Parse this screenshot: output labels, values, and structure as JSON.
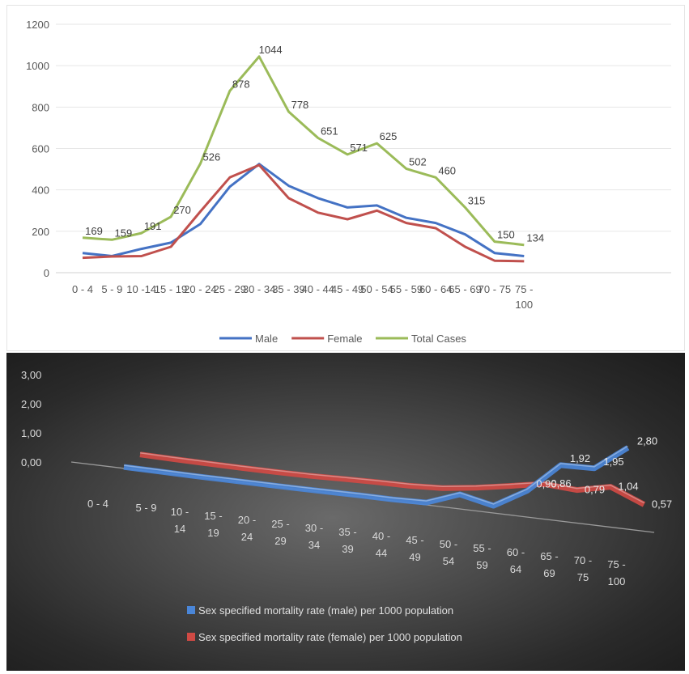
{
  "chart_data": [
    {
      "type": "line",
      "title": "",
      "xlabel": "",
      "ylabel": "",
      "ylim": [
        0,
        1200
      ],
      "yticks": [
        "0",
        "200",
        "400",
        "600",
        "800",
        "1000",
        "1200"
      ],
      "grid": true,
      "legend_position": "bottom",
      "x_tick_lines": [
        [
          "0 - 4"
        ],
        [
          "5 - 9"
        ],
        [
          "10 -14"
        ],
        [
          "15 - 19"
        ],
        [
          "20 - 24"
        ],
        [
          "25 - 29"
        ],
        [
          "30 - 34"
        ],
        [
          "35 - 39"
        ],
        [
          "40 - 44"
        ],
        [
          "45 - 49"
        ],
        [
          "50 - 54"
        ],
        [
          "55 - 59"
        ],
        [
          "60 - 64"
        ],
        [
          "65 - 69"
        ],
        [
          "70 - 75"
        ],
        [
          "75 -",
          "100"
        ]
      ],
      "categories": [
        "0 - 4",
        "5 - 9",
        "10 -14",
        "15 - 19",
        "20 - 24",
        "25 - 29",
        "30 - 34",
        "35 - 39",
        "40 - 44",
        "45 - 49",
        "50 - 54",
        "55 - 59",
        "60 - 64",
        "65 - 69",
        "70 - 75",
        "75 - 100"
      ],
      "series": [
        {
          "name": "Male",
          "color": "#4472c4",
          "values": [
            95,
            80,
            115,
            145,
            235,
            415,
            525,
            420,
            360,
            315,
            325,
            265,
            240,
            185,
            95,
            80
          ]
        },
        {
          "name": "Female",
          "color": "#c0504d",
          "values": [
            72,
            78,
            80,
            125,
            295,
            460,
            520,
            360,
            290,
            258,
            300,
            240,
            215,
            125,
            58,
            55
          ]
        },
        {
          "name": "Total Cases",
          "color": "#9bbb59",
          "values": [
            169,
            159,
            191,
            270,
            526,
            878,
            1044,
            778,
            651,
            571,
            625,
            502,
            460,
            315,
            150,
            134
          ]
        }
      ],
      "data_labels": [
        "169",
        "159",
        "191",
        "270",
        "526",
        "878",
        "1044",
        "778",
        "651",
        "571",
        "625",
        "502",
        "460",
        "315",
        "150",
        "134"
      ]
    },
    {
      "type": "line",
      "title": "",
      "xlabel": "",
      "ylabel": "",
      "ylim": [
        0,
        3
      ],
      "yticks": [
        "0,00",
        "1,00",
        "2,00",
        "3,00"
      ],
      "grid": false,
      "legend_position": "bottom",
      "x_tick_lines": [
        [
          "0 - 4"
        ],
        [
          "5 - 9"
        ],
        [
          "10 -",
          "14"
        ],
        [
          "15 -",
          "19"
        ],
        [
          "20 -",
          "24"
        ],
        [
          "25 -",
          "29"
        ],
        [
          "30 -",
          "34"
        ],
        [
          "35 -",
          "39"
        ],
        [
          "40 -",
          "44"
        ],
        [
          "45 -",
          "49"
        ],
        [
          "50 -",
          "54"
        ],
        [
          "55 -",
          "59"
        ],
        [
          "60 -",
          "64"
        ],
        [
          "65 -",
          "69"
        ],
        [
          "70 -",
          "75"
        ],
        [
          "75 -",
          "100"
        ]
      ],
      "categories": [
        "0 - 4",
        "5 - 9",
        "10 - 14",
        "15 - 19",
        "20 - 24",
        "25 - 29",
        "30 - 34",
        "35 - 39",
        "40 - 44",
        "45 - 49",
        "50 - 54",
        "55 - 59",
        "60 - 64",
        "65 - 69",
        "70 - 75",
        "75 - 100"
      ],
      "series": [
        {
          "name": "Sex specified mortality rate (male) per 1000 population",
          "color": "#4a86d8",
          "values": [
            0.05,
            0.04,
            0.03,
            0.03,
            0.03,
            0.03,
            0.04,
            0.05,
            0.05,
            0.08,
            0.5,
            0.25,
            0.9,
            1.92,
            1.95,
            2.8
          ]
        },
        {
          "name": "Sex specified mortality rate (female) per 1000 population",
          "color": "#d04a44",
          "values": [
            0.2,
            0.18,
            0.17,
            0.16,
            0.16,
            0.17,
            0.2,
            0.23,
            0.24,
            0.3,
            0.45,
            0.65,
            0.86,
            0.79,
            1.04,
            0.57
          ]
        }
      ],
      "data_labels_male": {
        "12": "0,90",
        "13": "1,92",
        "14": "1,95",
        "15": "2,80"
      },
      "data_labels_female": {
        "12": "0,86",
        "13": "0,79",
        "14": "1,04",
        "15": "0,57"
      }
    }
  ]
}
